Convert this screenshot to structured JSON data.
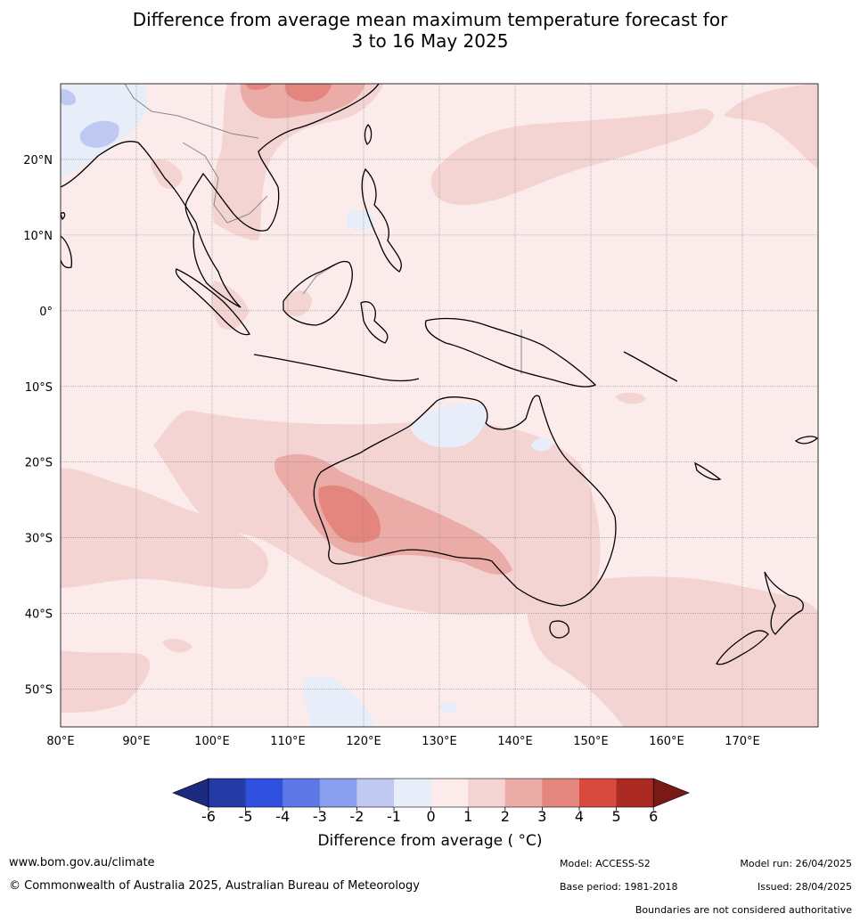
{
  "title": {
    "line1": "Difference from average mean maximum temperature forecast for",
    "line2": "3 to 16 May 2025"
  },
  "map": {
    "lon_ticks": [
      "80°E",
      "90°E",
      "100°E",
      "110°E",
      "120°E",
      "130°E",
      "140°E",
      "150°E",
      "160°E",
      "170°E"
    ],
    "lat_ticks": [
      "20°N",
      "10°N",
      "0°",
      "10°S",
      "20°S",
      "30°S",
      "40°S",
      "50°S"
    ],
    "lon_range": [
      80,
      180
    ],
    "lat_range": [
      -55,
      30
    ],
    "colors": {
      "neg1_0": "#e8edfa",
      "neg2_1": "#c0c9f2",
      "pos0_1": "#fbebea",
      "pos1_2": "#f4d4d2",
      "pos2_3": "#ebaba6",
      "pos3_4": "#e4857e",
      "coast": "#000000",
      "border": "#888888",
      "grid": "#8a8a8a"
    }
  },
  "colorbar": {
    "ticks": [
      "-6",
      "-5",
      "-4",
      "-3",
      "-2",
      "-1",
      "0",
      "1",
      "2",
      "3",
      "4",
      "5",
      "6"
    ],
    "colors": [
      "#263aa6",
      "#3050e0",
      "#5e78e8",
      "#8a9eee",
      "#c0c9f2",
      "#e8edfa",
      "#fbebea",
      "#f4d4d2",
      "#ebaba6",
      "#e4857e",
      "#d94a3e",
      "#ab2b23"
    ],
    "under_color": "#1c2a80",
    "over_color": "#7a1a16",
    "label": "Difference from average ( °C)"
  },
  "footer": {
    "website": "www.bom.gov.au/climate",
    "copyright": "© Commonwealth of Australia 2025, Australian Bureau of Meteorology",
    "model": "Model: ACCESS-S2",
    "base_period": "Base period: 1981-2018",
    "model_run": "Model run: 26/04/2025",
    "issued": "Issued: 28/04/2025",
    "disclaimer": "Boundaries are not considered authoritative"
  }
}
